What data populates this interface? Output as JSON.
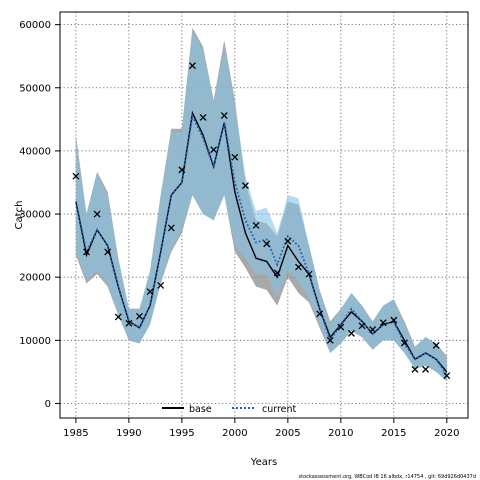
{
  "chart_data": {
    "type": "line",
    "title": "",
    "xlabel": "Years",
    "ylabel": "Catch",
    "xlim": [
      1983.5,
      2022
    ],
    "ylim": [
      -2300,
      62000
    ],
    "x_ticks": [
      1985,
      1990,
      1995,
      2000,
      2005,
      2010,
      2015,
      2020
    ],
    "y_ticks": [
      0,
      10000,
      20000,
      30000,
      40000,
      50000,
      60000
    ],
    "grid": true,
    "legend_position": "bottom-center",
    "footer": "stockassessment.org, WBCod IB 16 albdx, r14754 , git: 69d926d0437d",
    "series": [
      {
        "name": "base",
        "style": "solid",
        "color": "#000000",
        "band_color": "#8c8c8c",
        "x": [
          1985,
          1986,
          1987,
          1988,
          1989,
          1990,
          1991,
          1992,
          1993,
          1994,
          1995,
          1996,
          1997,
          1998,
          1999,
          2000,
          2001,
          2002,
          2003,
          2004,
          2005,
          2006,
          2007,
          2008,
          2009,
          2010,
          2011,
          2012,
          2013,
          2014,
          2015,
          2016,
          2017,
          2018,
          2019,
          2020
        ],
        "values": [
          32000,
          23500,
          27500,
          25000,
          18500,
          13000,
          12000,
          15500,
          24000,
          33000,
          35000,
          46000,
          42500,
          37500,
          44500,
          33500,
          27000,
          23000,
          22500,
          20000,
          25000,
          22500,
          20500,
          15000,
          10500,
          12500,
          14500,
          13000,
          11000,
          12500,
          13000,
          10000,
          7000,
          8000,
          7000,
          5000
        ],
        "upper": [
          42500,
          30000,
          36700,
          33500,
          23000,
          15000,
          15000,
          21000,
          33000,
          43500,
          43500,
          59500,
          56500,
          48000,
          57500,
          48000,
          35000,
          29000,
          28500,
          26500,
          32000,
          31500,
          25000,
          18000,
          13000,
          15000,
          17500,
          15500,
          13000,
          15500,
          16500,
          13000,
          9000,
          10500,
          9500,
          7500
        ],
        "lower": [
          23500,
          19000,
          20500,
          18500,
          14000,
          10000,
          9500,
          12500,
          19000,
          24000,
          27000,
          33000,
          30000,
          29000,
          33000,
          24000,
          21500,
          18500,
          18000,
          15500,
          20000,
          17500,
          16000,
          12000,
          8000,
          9500,
          11500,
          10500,
          8500,
          10000,
          10000,
          8000,
          5500,
          6000,
          5000,
          3500
        ]
      },
      {
        "name": "current",
        "style": "dotted",
        "color": "#1f5fb5",
        "band_color": "#86c5e8",
        "x": [
          1985,
          1986,
          1987,
          1988,
          1989,
          1990,
          1991,
          1992,
          1993,
          1994,
          1995,
          1996,
          1997,
          1998,
          1999,
          2000,
          2001,
          2002,
          2003,
          2004,
          2005,
          2006,
          2007,
          2008,
          2009,
          2010,
          2011,
          2012,
          2013,
          2014,
          2015,
          2016,
          2017,
          2018,
          2019,
          2020
        ],
        "values": [
          32000,
          24000,
          27500,
          25000,
          18500,
          13000,
          12000,
          15500,
          24000,
          33000,
          35000,
          45500,
          42000,
          37500,
          44500,
          35000,
          29000,
          25500,
          26000,
          22000,
          26500,
          25000,
          20500,
          15000,
          10000,
          12500,
          15000,
          13000,
          11000,
          12500,
          13000,
          9500,
          7000,
          8000,
          7000,
          4500
        ],
        "upper": [
          42000,
          30000,
          36500,
          33000,
          23000,
          15000,
          15000,
          21000,
          33000,
          43000,
          43000,
          59000,
          56000,
          47500,
          56500,
          47500,
          36000,
          30500,
          31000,
          27000,
          33000,
          32500,
          25000,
          18000,
          12500,
          15000,
          17500,
          15500,
          13000,
          15500,
          16500,
          12500,
          9000,
          10500,
          9500,
          7000
        ],
        "lower": [
          24000,
          19500,
          21000,
          19000,
          14000,
          10000,
          9500,
          12500,
          19000,
          24500,
          27500,
          33000,
          30000,
          29000,
          33000,
          25000,
          23000,
          20500,
          20500,
          17000,
          21000,
          19500,
          16500,
          12500,
          8000,
          9500,
          11500,
          10500,
          8500,
          10000,
          10000,
          8000,
          5500,
          6000,
          5000,
          3500
        ]
      }
    ],
    "observations": {
      "marker": "x",
      "x": [
        1985,
        1986,
        1987,
        1988,
        1989,
        1990,
        1991,
        1992,
        1993,
        1994,
        1995,
        1996,
        1997,
        1998,
        1999,
        2000,
        2001,
        2002,
        2003,
        2004,
        2005,
        2006,
        2007,
        2008,
        2009,
        2010,
        2011,
        2012,
        2013,
        2014,
        2015,
        2016,
        2017,
        2018,
        2019,
        2020
      ],
      "values": [
        36000,
        24000,
        30000,
        24000,
        13700,
        12700,
        13800,
        17700,
        18700,
        27800,
        37000,
        53500,
        45300,
        40200,
        45600,
        39000,
        34500,
        28200,
        25300,
        20700,
        25700,
        21600,
        20500,
        14200,
        10000,
        12100,
        11100,
        12300,
        11700,
        12800,
        13200,
        9600,
        5400,
        5400,
        9200,
        4400
      ]
    }
  }
}
